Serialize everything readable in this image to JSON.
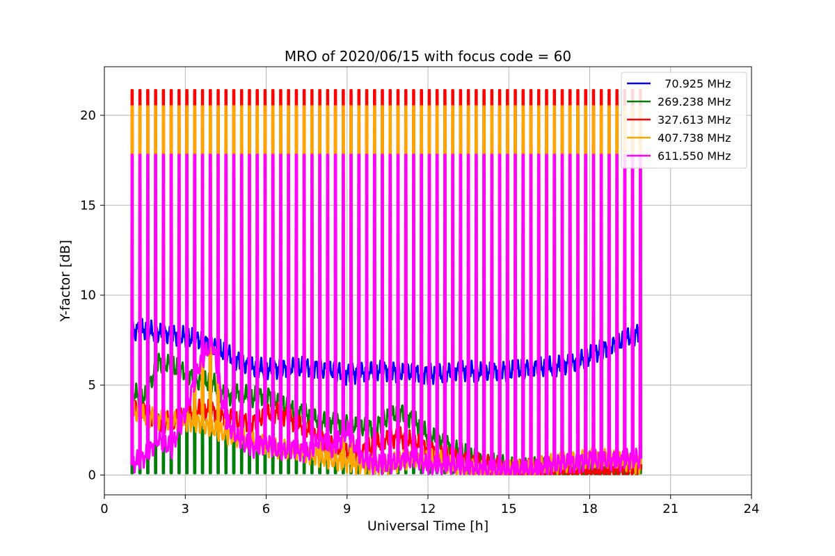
{
  "chart_data": {
    "type": "line",
    "title": "MRO of 2020/06/15 with focus code = 60",
    "xlabel": "Universal Time [h]",
    "ylabel": "Y-factor [dB]",
    "xlim": [
      0,
      24
    ],
    "ylim": [
      -1.1,
      22.7
    ],
    "xticks": [
      0,
      3,
      6,
      9,
      12,
      15,
      18,
      21,
      24
    ],
    "yticks": [
      0,
      5,
      10,
      15,
      20
    ],
    "grid": true,
    "legend_position": "top-right",
    "calibration_spikes": {
      "count": 66,
      "t_start": 1.0,
      "t_end": 19.85
    },
    "series": [
      {
        "name": "  70.925 MHz",
        "color": "#0000ff",
        "x": [
          1.0,
          1.5,
          2.0,
          2.5,
          3.0,
          3.5,
          4.0,
          4.5,
          5.0,
          5.5,
          6.0,
          6.5,
          7.0,
          7.5,
          8.0,
          8.5,
          9.0,
          9.5,
          10.0,
          10.5,
          11.0,
          11.5,
          12.0,
          12.5,
          13.0,
          13.5,
          14.0,
          14.5,
          15.0,
          15.5,
          16.0,
          16.5,
          17.0,
          17.5,
          18.0,
          18.5,
          19.0,
          19.5,
          19.85
        ],
        "y": [
          8.0,
          8.1,
          7.9,
          7.8,
          7.7,
          7.5,
          7.2,
          6.8,
          6.3,
          6.0,
          5.9,
          5.9,
          6.0,
          6.0,
          5.9,
          5.8,
          5.6,
          5.7,
          5.8,
          5.8,
          5.7,
          5.7,
          5.6,
          5.6,
          5.8,
          5.8,
          5.7,
          5.8,
          5.8,
          5.9,
          6.0,
          6.0,
          6.1,
          6.3,
          6.6,
          7.0,
          7.3,
          7.7,
          7.9
        ],
        "spike_peak": 0.1
      },
      {
        "name": "269.238 MHz",
        "color": "#008000",
        "x": [
          1.0,
          1.5,
          2.0,
          2.5,
          3.0,
          3.5,
          4.0,
          4.5,
          5.0,
          5.5,
          6.0,
          6.5,
          7.0,
          7.5,
          8.0,
          8.5,
          9.0,
          9.5,
          10.0,
          10.5,
          11.0,
          11.5,
          12.0,
          12.5,
          13.0,
          13.5,
          14.0,
          14.5,
          15.0,
          15.5,
          16.0,
          16.5,
          17.0,
          17.5,
          18.0,
          18.5,
          19.0,
          19.5,
          19.85
        ],
        "y": [
          4.6,
          4.3,
          6.3,
          6.1,
          5.7,
          5.2,
          5.2,
          4.3,
          4.6,
          4.3,
          4.5,
          4.0,
          3.6,
          3.4,
          3.0,
          2.9,
          2.8,
          2.7,
          2.6,
          3.2,
          3.5,
          3.0,
          2.2,
          1.9,
          1.4,
          1.1,
          0.8,
          0.6,
          0.5,
          0.4,
          0.4,
          0.3,
          0.3,
          0.3,
          0.3,
          0.3,
          0.3,
          0.4,
          0.5
        ],
        "spike_peak": 0.1
      },
      {
        "name": "327.613 MHz",
        "color": "#ff0000",
        "x": [
          1.0,
          1.5,
          2.0,
          2.5,
          3.0,
          3.5,
          4.0,
          4.5,
          5.0,
          5.5,
          6.0,
          6.5,
          7.0,
          7.5,
          8.0,
          8.5,
          9.0,
          9.5,
          10.0,
          10.5,
          11.0,
          11.5,
          12.0,
          12.5,
          13.0,
          13.5,
          14.0,
          14.5,
          15.0,
          15.5,
          16.0,
          16.5,
          17.0,
          17.5,
          18.0,
          18.5,
          19.0,
          19.5,
          19.85
        ],
        "y": [
          3.8,
          3.6,
          2.8,
          3.1,
          3.3,
          3.6,
          3.6,
          3.2,
          3.0,
          2.9,
          3.4,
          3.5,
          3.0,
          2.6,
          2.0,
          1.6,
          1.3,
          1.2,
          1.7,
          2.0,
          2.1,
          1.8,
          1.5,
          1.1,
          0.9,
          0.8,
          0.6,
          0.4,
          0.3,
          0.3,
          0.3,
          0.2,
          0.2,
          0.2,
          0.2,
          0.2,
          0.3,
          0.3,
          0.3
        ],
        "spike_peak": 21.4
      },
      {
        "name": "407.738 MHz",
        "color": "#ffa500",
        "x": [
          1.0,
          1.5,
          2.0,
          2.5,
          3.0,
          3.5,
          4.0,
          4.5,
          5.0,
          5.5,
          6.0,
          6.5,
          7.0,
          7.5,
          8.0,
          8.5,
          9.0,
          9.5,
          10.0,
          10.5,
          11.0,
          11.5,
          12.0,
          12.5,
          13.0,
          13.5,
          14.0,
          14.5,
          15.0,
          15.5,
          16.0,
          16.5,
          17.0,
          17.5,
          18.0,
          18.5,
          19.0,
          19.5,
          19.85
        ],
        "y": [
          3.6,
          3.3,
          3.1,
          3.0,
          3.0,
          2.9,
          2.6,
          2.3,
          2.1,
          1.9,
          1.6,
          1.5,
          1.4,
          1.2,
          1.0,
          0.8,
          0.7,
          0.6,
          0.5,
          0.6,
          0.8,
          0.9,
          0.9,
          0.8,
          0.5,
          0.3,
          0.2,
          0.2,
          0.3,
          0.4,
          0.5,
          0.6,
          0.7,
          0.8,
          0.9,
          1.0,
          0.9,
          0.7,
          0.6
        ],
        "spike_peak": 20.5
      },
      {
        "name": "611.550 MHz",
        "color": "#ff00ff",
        "x": [
          1.0,
          1.5,
          2.0,
          2.5,
          3.0,
          3.5,
          4.0,
          4.5,
          5.0,
          5.5,
          6.0,
          6.5,
          7.0,
          7.5,
          8.0,
          8.5,
          9.0,
          9.5,
          10.0,
          10.5,
          11.0,
          11.5,
          12.0,
          12.5,
          13.0,
          13.5,
          14.0,
          14.5,
          15.0,
          15.5,
          16.0,
          16.5,
          17.0,
          17.5,
          18.0,
          18.5,
          19.0,
          19.5,
          19.85
        ],
        "y": [
          0.6,
          1.0,
          2.0,
          1.5,
          3.5,
          6.0,
          7.5,
          3.0,
          2.0,
          1.5,
          1.8,
          1.3,
          1.5,
          1.2,
          2.0,
          1.5,
          2.5,
          1.0,
          0.6,
          0.6,
          0.8,
          1.0,
          0.5,
          0.5,
          0.6,
          0.4,
          0.3,
          0.3,
          0.2,
          0.3,
          0.3,
          0.5,
          0.7,
          0.6,
          0.9,
          0.8,
          0.8,
          0.9,
          0.9
        ],
        "spike_peak": 17.8
      }
    ]
  }
}
